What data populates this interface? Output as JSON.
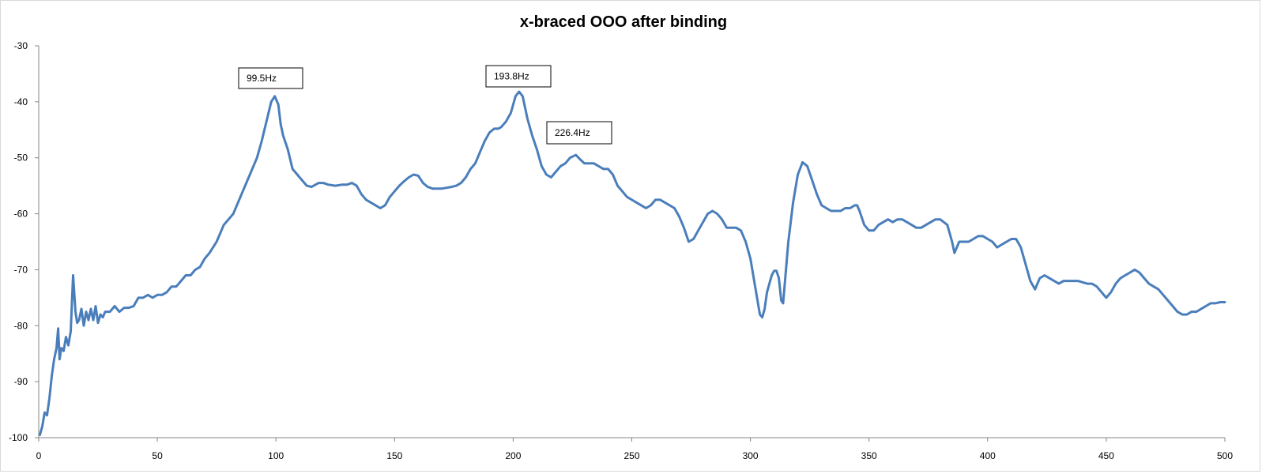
{
  "chart_data": {
    "type": "line",
    "title": "x-braced OOO after binding",
    "xlabel": "",
    "ylabel": "",
    "xlim": [
      0,
      500
    ],
    "ylim": [
      -100,
      -30
    ],
    "x_ticks": [
      0,
      50,
      100,
      150,
      200,
      250,
      300,
      350,
      400,
      450,
      500
    ],
    "y_ticks": [
      -30,
      -40,
      -50,
      -60,
      -70,
      -80,
      -90,
      -100
    ],
    "grid": false,
    "legend": "none",
    "line_color": "#4a7ebb",
    "annotations": [
      {
        "text": "99.5Hz",
        "x": 99.5,
        "y": -39
      },
      {
        "text": "193.8Hz",
        "x": 193.8,
        "y": -38
      },
      {
        "text": "226.4Hz",
        "x": 226.4,
        "y": -49.5
      }
    ],
    "series": [
      {
        "points": [
          [
            0.5,
            -99.5
          ],
          [
            1.5,
            -98
          ],
          [
            2.5,
            -95.5
          ],
          [
            3.5,
            -96
          ],
          [
            4.5,
            -93
          ],
          [
            5.5,
            -89
          ],
          [
            6.5,
            -86
          ],
          [
            7.5,
            -84
          ],
          [
            8.2,
            -80.5
          ],
          [
            8.8,
            -86
          ],
          [
            9.5,
            -84
          ],
          [
            10.5,
            -84.5
          ],
          [
            11.5,
            -82
          ],
          [
            12.5,
            -83.5
          ],
          [
            13.5,
            -81
          ],
          [
            14.5,
            -71
          ],
          [
            15.5,
            -77.5
          ],
          [
            16.2,
            -79.5
          ],
          [
            17,
            -79
          ],
          [
            18,
            -77
          ],
          [
            19,
            -80
          ],
          [
            20,
            -77.5
          ],
          [
            21,
            -79
          ],
          [
            22,
            -77
          ],
          [
            23,
            -79
          ],
          [
            24,
            -76.5
          ],
          [
            25,
            -79.5
          ],
          [
            26,
            -78
          ],
          [
            27,
            -78.5
          ],
          [
            28,
            -77.5
          ],
          [
            30,
            -77.5
          ],
          [
            32,
            -76.5
          ],
          [
            34,
            -77.5
          ],
          [
            36,
            -76.8
          ],
          [
            38,
            -76.8
          ],
          [
            40,
            -76.5
          ],
          [
            42,
            -75
          ],
          [
            44,
            -75
          ],
          [
            46,
            -74.5
          ],
          [
            48,
            -75
          ],
          [
            50,
            -74.5
          ],
          [
            52,
            -74.5
          ],
          [
            54,
            -74
          ],
          [
            56,
            -73
          ],
          [
            58,
            -73
          ],
          [
            60,
            -72
          ],
          [
            62,
            -71
          ],
          [
            64,
            -71
          ],
          [
            66,
            -70
          ],
          [
            68,
            -69.5
          ],
          [
            70,
            -68
          ],
          [
            72,
            -67
          ],
          [
            75,
            -65
          ],
          [
            78,
            -62
          ],
          [
            80,
            -61
          ],
          [
            82,
            -60
          ],
          [
            84,
            -58
          ],
          [
            86,
            -56
          ],
          [
            88,
            -54
          ],
          [
            90,
            -52
          ],
          [
            92,
            -50
          ],
          [
            94,
            -47
          ],
          [
            96,
            -43.5
          ],
          [
            98,
            -40
          ],
          [
            99.5,
            -39
          ],
          [
            101,
            -40.5
          ],
          [
            102,
            -44
          ],
          [
            103,
            -46
          ],
          [
            105,
            -48.5
          ],
          [
            107,
            -52
          ],
          [
            109,
            -53
          ],
          [
            111,
            -54
          ],
          [
            113,
            -55
          ],
          [
            115,
            -55.2
          ],
          [
            118,
            -54.5
          ],
          [
            120,
            -54.5
          ],
          [
            122,
            -54.8
          ],
          [
            125,
            -55
          ],
          [
            128,
            -54.8
          ],
          [
            130,
            -54.8
          ],
          [
            132,
            -54.5
          ],
          [
            134,
            -55
          ],
          [
            136,
            -56.5
          ],
          [
            138,
            -57.5
          ],
          [
            140,
            -58
          ],
          [
            142,
            -58.5
          ],
          [
            144,
            -59
          ],
          [
            146,
            -58.5
          ],
          [
            148,
            -57
          ],
          [
            150,
            -56
          ],
          [
            152,
            -55
          ],
          [
            154,
            -54.2
          ],
          [
            156,
            -53.5
          ],
          [
            158,
            -53
          ],
          [
            160,
            -53.2
          ],
          [
            162,
            -54.5
          ],
          [
            164,
            -55.2
          ],
          [
            166,
            -55.5
          ],
          [
            170,
            -55.5
          ],
          [
            174,
            -55.2
          ],
          [
            176,
            -55
          ],
          [
            178,
            -54.5
          ],
          [
            180,
            -53.5
          ],
          [
            182,
            -52
          ],
          [
            184,
            -51
          ],
          [
            186,
            -49
          ],
          [
            188,
            -47
          ],
          [
            190,
            -45.5
          ],
          [
            192,
            -44.8
          ],
          [
            193.8,
            -44.8
          ],
          [
            195,
            -44.5
          ],
          [
            197,
            -43.5
          ],
          [
            199,
            -42
          ],
          [
            200,
            -40.5
          ],
          [
            201,
            -39
          ],
          [
            202.5,
            -38.2
          ],
          [
            204,
            -39
          ],
          [
            205,
            -41
          ],
          [
            206,
            -43
          ],
          [
            208,
            -46
          ],
          [
            210,
            -48.5
          ],
          [
            212,
            -51.5
          ],
          [
            214,
            -53
          ],
          [
            216,
            -53.5
          ],
          [
            218,
            -52.5
          ],
          [
            220,
            -51.5
          ],
          [
            222,
            -51
          ],
          [
            224,
            -50
          ],
          [
            226.4,
            -49.5
          ],
          [
            228,
            -50.2
          ],
          [
            230,
            -51
          ],
          [
            232,
            -51
          ],
          [
            234,
            -51
          ],
          [
            236,
            -51.5
          ],
          [
            238,
            -52
          ],
          [
            240,
            -52
          ],
          [
            242,
            -53
          ],
          [
            244,
            -55
          ],
          [
            246,
            -56
          ],
          [
            248,
            -57
          ],
          [
            250,
            -57.5
          ],
          [
            252,
            -58
          ],
          [
            254,
            -58.5
          ],
          [
            256,
            -59
          ],
          [
            258,
            -58.5
          ],
          [
            260,
            -57.5
          ],
          [
            262,
            -57.5
          ],
          [
            264,
            -58
          ],
          [
            266,
            -58.5
          ],
          [
            268,
            -59
          ],
          [
            270,
            -60.5
          ],
          [
            272,
            -62.5
          ],
          [
            274,
            -65
          ],
          [
            276,
            -64.5
          ],
          [
            278,
            -63
          ],
          [
            280,
            -61.5
          ],
          [
            282,
            -60
          ],
          [
            284,
            -59.5
          ],
          [
            286,
            -60
          ],
          [
            288,
            -61
          ],
          [
            290,
            -62.5
          ],
          [
            292,
            -62.5
          ],
          [
            294,
            -62.5
          ],
          [
            296,
            -63
          ],
          [
            298,
            -65
          ],
          [
            300,
            -68
          ],
          [
            302,
            -73
          ],
          [
            304,
            -78
          ],
          [
            305,
            -78.5
          ],
          [
            306,
            -77
          ],
          [
            307,
            -74
          ],
          [
            309,
            -71
          ],
          [
            310,
            -70.2
          ],
          [
            311,
            -70.2
          ],
          [
            312,
            -71.5
          ],
          [
            313,
            -75.5
          ],
          [
            313.8,
            -76
          ],
          [
            315,
            -70
          ],
          [
            316,
            -65
          ],
          [
            318,
            -58
          ],
          [
            320,
            -53
          ],
          [
            322,
            -50.8
          ],
          [
            324,
            -51.5
          ],
          [
            326,
            -54
          ],
          [
            328,
            -56.5
          ],
          [
            330,
            -58.5
          ],
          [
            332,
            -59
          ],
          [
            334,
            -59.5
          ],
          [
            336,
            -59.5
          ],
          [
            338,
            -59.5
          ],
          [
            340,
            -59
          ],
          [
            342,
            -59
          ],
          [
            344,
            -58.5
          ],
          [
            345,
            -58.5
          ],
          [
            346,
            -59.5
          ],
          [
            348,
            -62
          ],
          [
            350,
            -63
          ],
          [
            352,
            -63
          ],
          [
            354,
            -62
          ],
          [
            356,
            -61.5
          ],
          [
            358,
            -61
          ],
          [
            360,
            -61.5
          ],
          [
            362,
            -61
          ],
          [
            364,
            -61
          ],
          [
            366,
            -61.5
          ],
          [
            368,
            -62
          ],
          [
            370,
            -62.5
          ],
          [
            372,
            -62.5
          ],
          [
            374,
            -62
          ],
          [
            376,
            -61.5
          ],
          [
            378,
            -61
          ],
          [
            380,
            -61
          ],
          [
            383,
            -62
          ],
          [
            385,
            -65
          ],
          [
            386,
            -67
          ],
          [
            388,
            -65
          ],
          [
            390,
            -65
          ],
          [
            392,
            -65
          ],
          [
            394,
            -64.5
          ],
          [
            396,
            -64
          ],
          [
            398,
            -64
          ],
          [
            400,
            -64.5
          ],
          [
            402,
            -65
          ],
          [
            404,
            -66
          ],
          [
            406,
            -65.5
          ],
          [
            408,
            -65
          ],
          [
            410,
            -64.5
          ],
          [
            412,
            -64.5
          ],
          [
            414,
            -66
          ],
          [
            416,
            -69
          ],
          [
            418,
            -72
          ],
          [
            420,
            -73.5
          ],
          [
            422,
            -71.5
          ],
          [
            424,
            -71
          ],
          [
            426,
            -71.5
          ],
          [
            428,
            -72
          ],
          [
            430,
            -72.5
          ],
          [
            432,
            -72
          ],
          [
            434,
            -72
          ],
          [
            438,
            -72
          ],
          [
            442,
            -72.5
          ],
          [
            444,
            -72.5
          ],
          [
            446,
            -73
          ],
          [
            448,
            -74
          ],
          [
            450,
            -75
          ],
          [
            452,
            -74
          ],
          [
            454,
            -72.5
          ],
          [
            456,
            -71.5
          ],
          [
            458,
            -71
          ],
          [
            460,
            -70.5
          ],
          [
            462,
            -70
          ],
          [
            464,
            -70.5
          ],
          [
            466,
            -71.5
          ],
          [
            468,
            -72.5
          ],
          [
            470,
            -73
          ],
          [
            472,
            -73.5
          ],
          [
            474,
            -74.5
          ],
          [
            476,
            -75.5
          ],
          [
            478,
            -76.5
          ],
          [
            480,
            -77.5
          ],
          [
            482,
            -78
          ],
          [
            484,
            -78
          ],
          [
            486,
            -77.5
          ],
          [
            488,
            -77.5
          ],
          [
            490,
            -77
          ],
          [
            492,
            -76.5
          ],
          [
            494,
            -76
          ],
          [
            496,
            -76
          ],
          [
            498,
            -75.8
          ],
          [
            500,
            -75.8
          ]
        ]
      }
    ]
  }
}
